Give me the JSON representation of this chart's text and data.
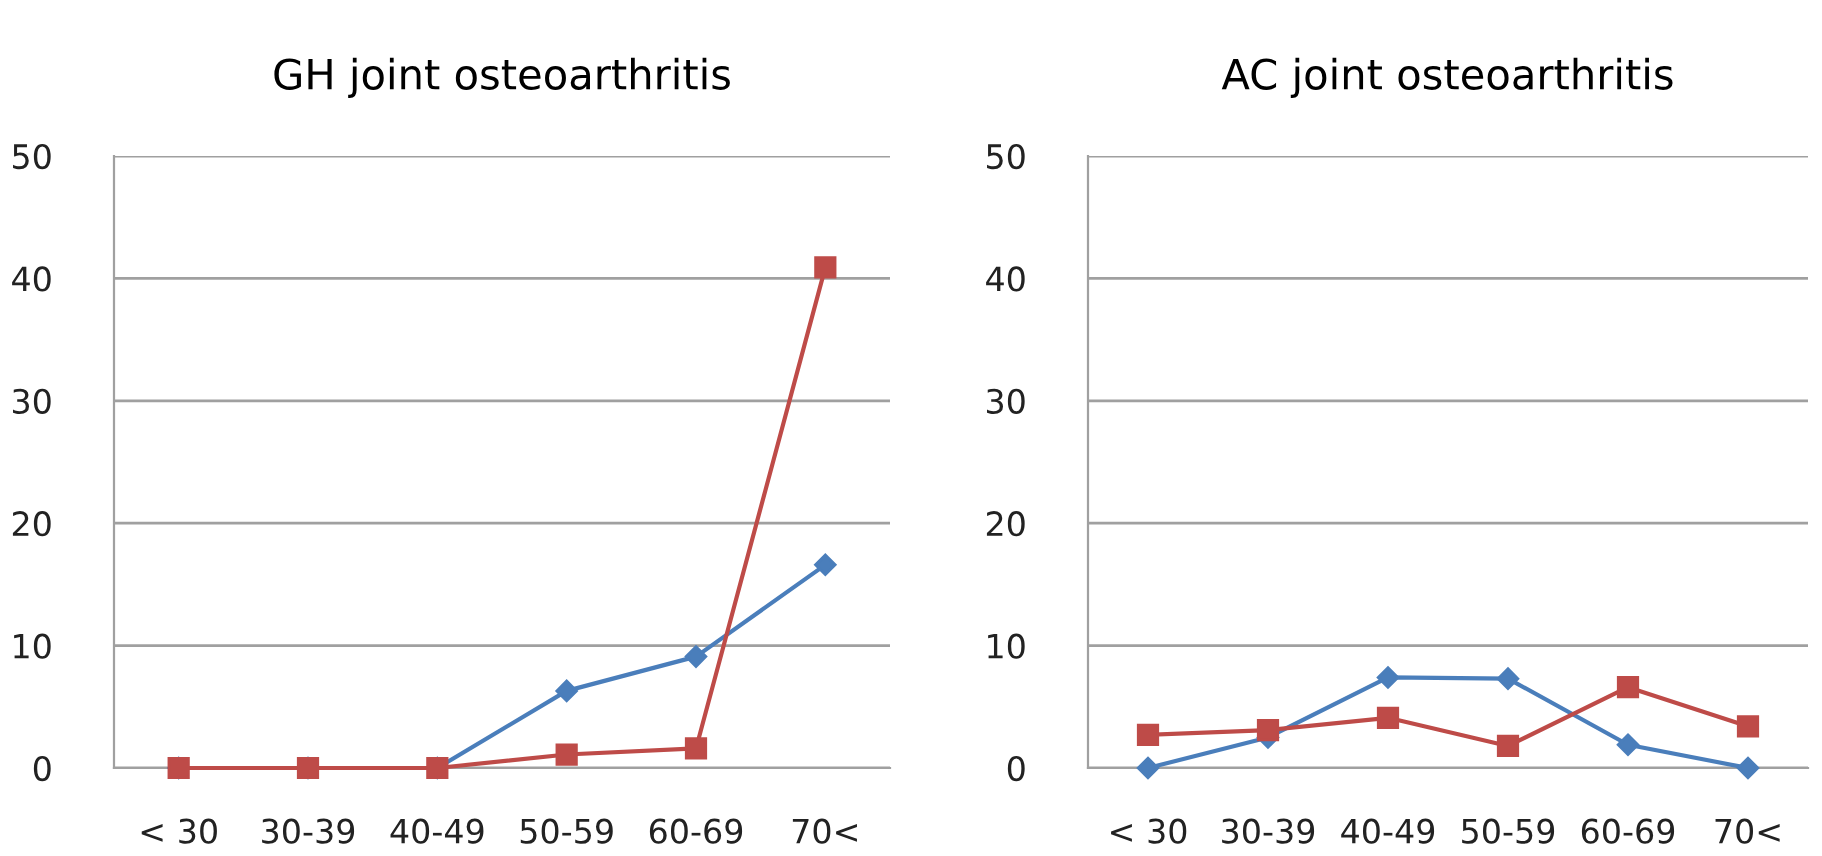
{
  "chart_data": [
    {
      "type": "line",
      "title": "GH joint osteoarthritis",
      "categories": [
        "< 30",
        "30-39",
        "40-49",
        "50-59",
        "60-69",
        "70<"
      ],
      "ylim": [
        0,
        50
      ],
      "yticks": [
        0,
        10,
        20,
        30,
        40,
        50
      ],
      "grid": "y",
      "series": [
        {
          "color": "#4a7ebb",
          "marker": "diamond",
          "values": [
            0,
            0,
            0,
            6.3,
            9.1,
            16.6
          ]
        },
        {
          "color": "#be4b48",
          "marker": "square",
          "values": [
            0,
            0,
            0,
            1.1,
            1.6,
            40.9
          ]
        }
      ]
    },
    {
      "type": "line",
      "title": "AC joint osteoarthritis",
      "categories": [
        "< 30",
        "30-39",
        "40-49",
        "50-59",
        "60-69",
        "70<"
      ],
      "ylim": [
        0,
        50
      ],
      "yticks": [
        0,
        10,
        20,
        30,
        40,
        50
      ],
      "grid": "y",
      "series": [
        {
          "color": "#4a7ebb",
          "marker": "diamond",
          "values": [
            0,
            2.5,
            7.4,
            7.3,
            1.9,
            0
          ]
        },
        {
          "color": "#be4b48",
          "marker": "square",
          "values": [
            2.7,
            3.1,
            4.1,
            1.8,
            6.6,
            3.4
          ]
        }
      ]
    }
  ]
}
